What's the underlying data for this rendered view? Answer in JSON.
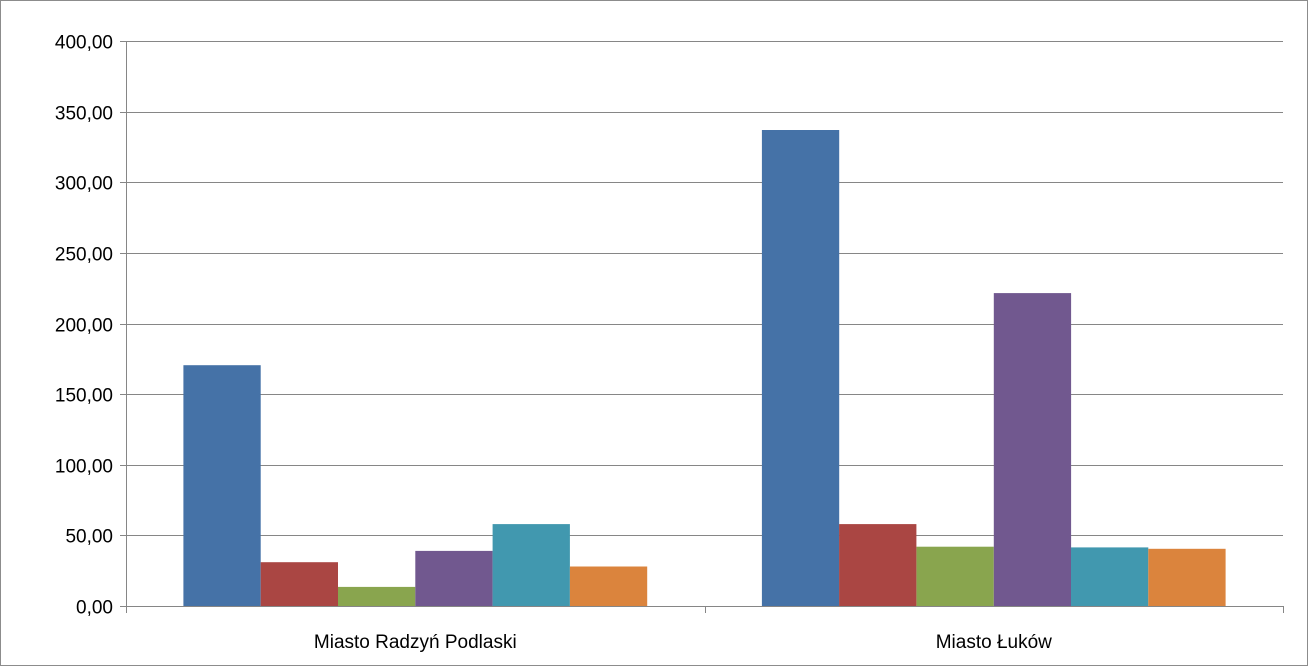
{
  "chart_data": {
    "type": "bar",
    "title": "",
    "xlabel": "",
    "ylabel": "",
    "categories": [
      "Miasto Radzyń Podlaski",
      "Miasto Łuków"
    ],
    "ylim": [
      0,
      400
    ],
    "yticks": [
      0,
      50,
      100,
      150,
      200,
      250,
      300,
      350,
      400
    ],
    "ytick_labels": [
      "0,00",
      "50,00",
      "100,00",
      "150,00",
      "200,00",
      "250,00",
      "300,00",
      "350,00",
      "400,00"
    ],
    "grid": true,
    "legend": "none",
    "series": [
      {
        "color": "#4572A7",
        "values": [
          170.5,
          337.0
        ]
      },
      {
        "color": "#AA4643",
        "values": [
          31.0,
          58.0
        ]
      },
      {
        "color": "#89A54E",
        "values": [
          13.5,
          42.0
        ]
      },
      {
        "color": "#71588F",
        "values": [
          39.0,
          221.5
        ]
      },
      {
        "color": "#4198AF",
        "values": [
          58.0,
          41.5
        ]
      },
      {
        "color": "#DB843D",
        "values": [
          28.0,
          40.5
        ]
      }
    ]
  }
}
